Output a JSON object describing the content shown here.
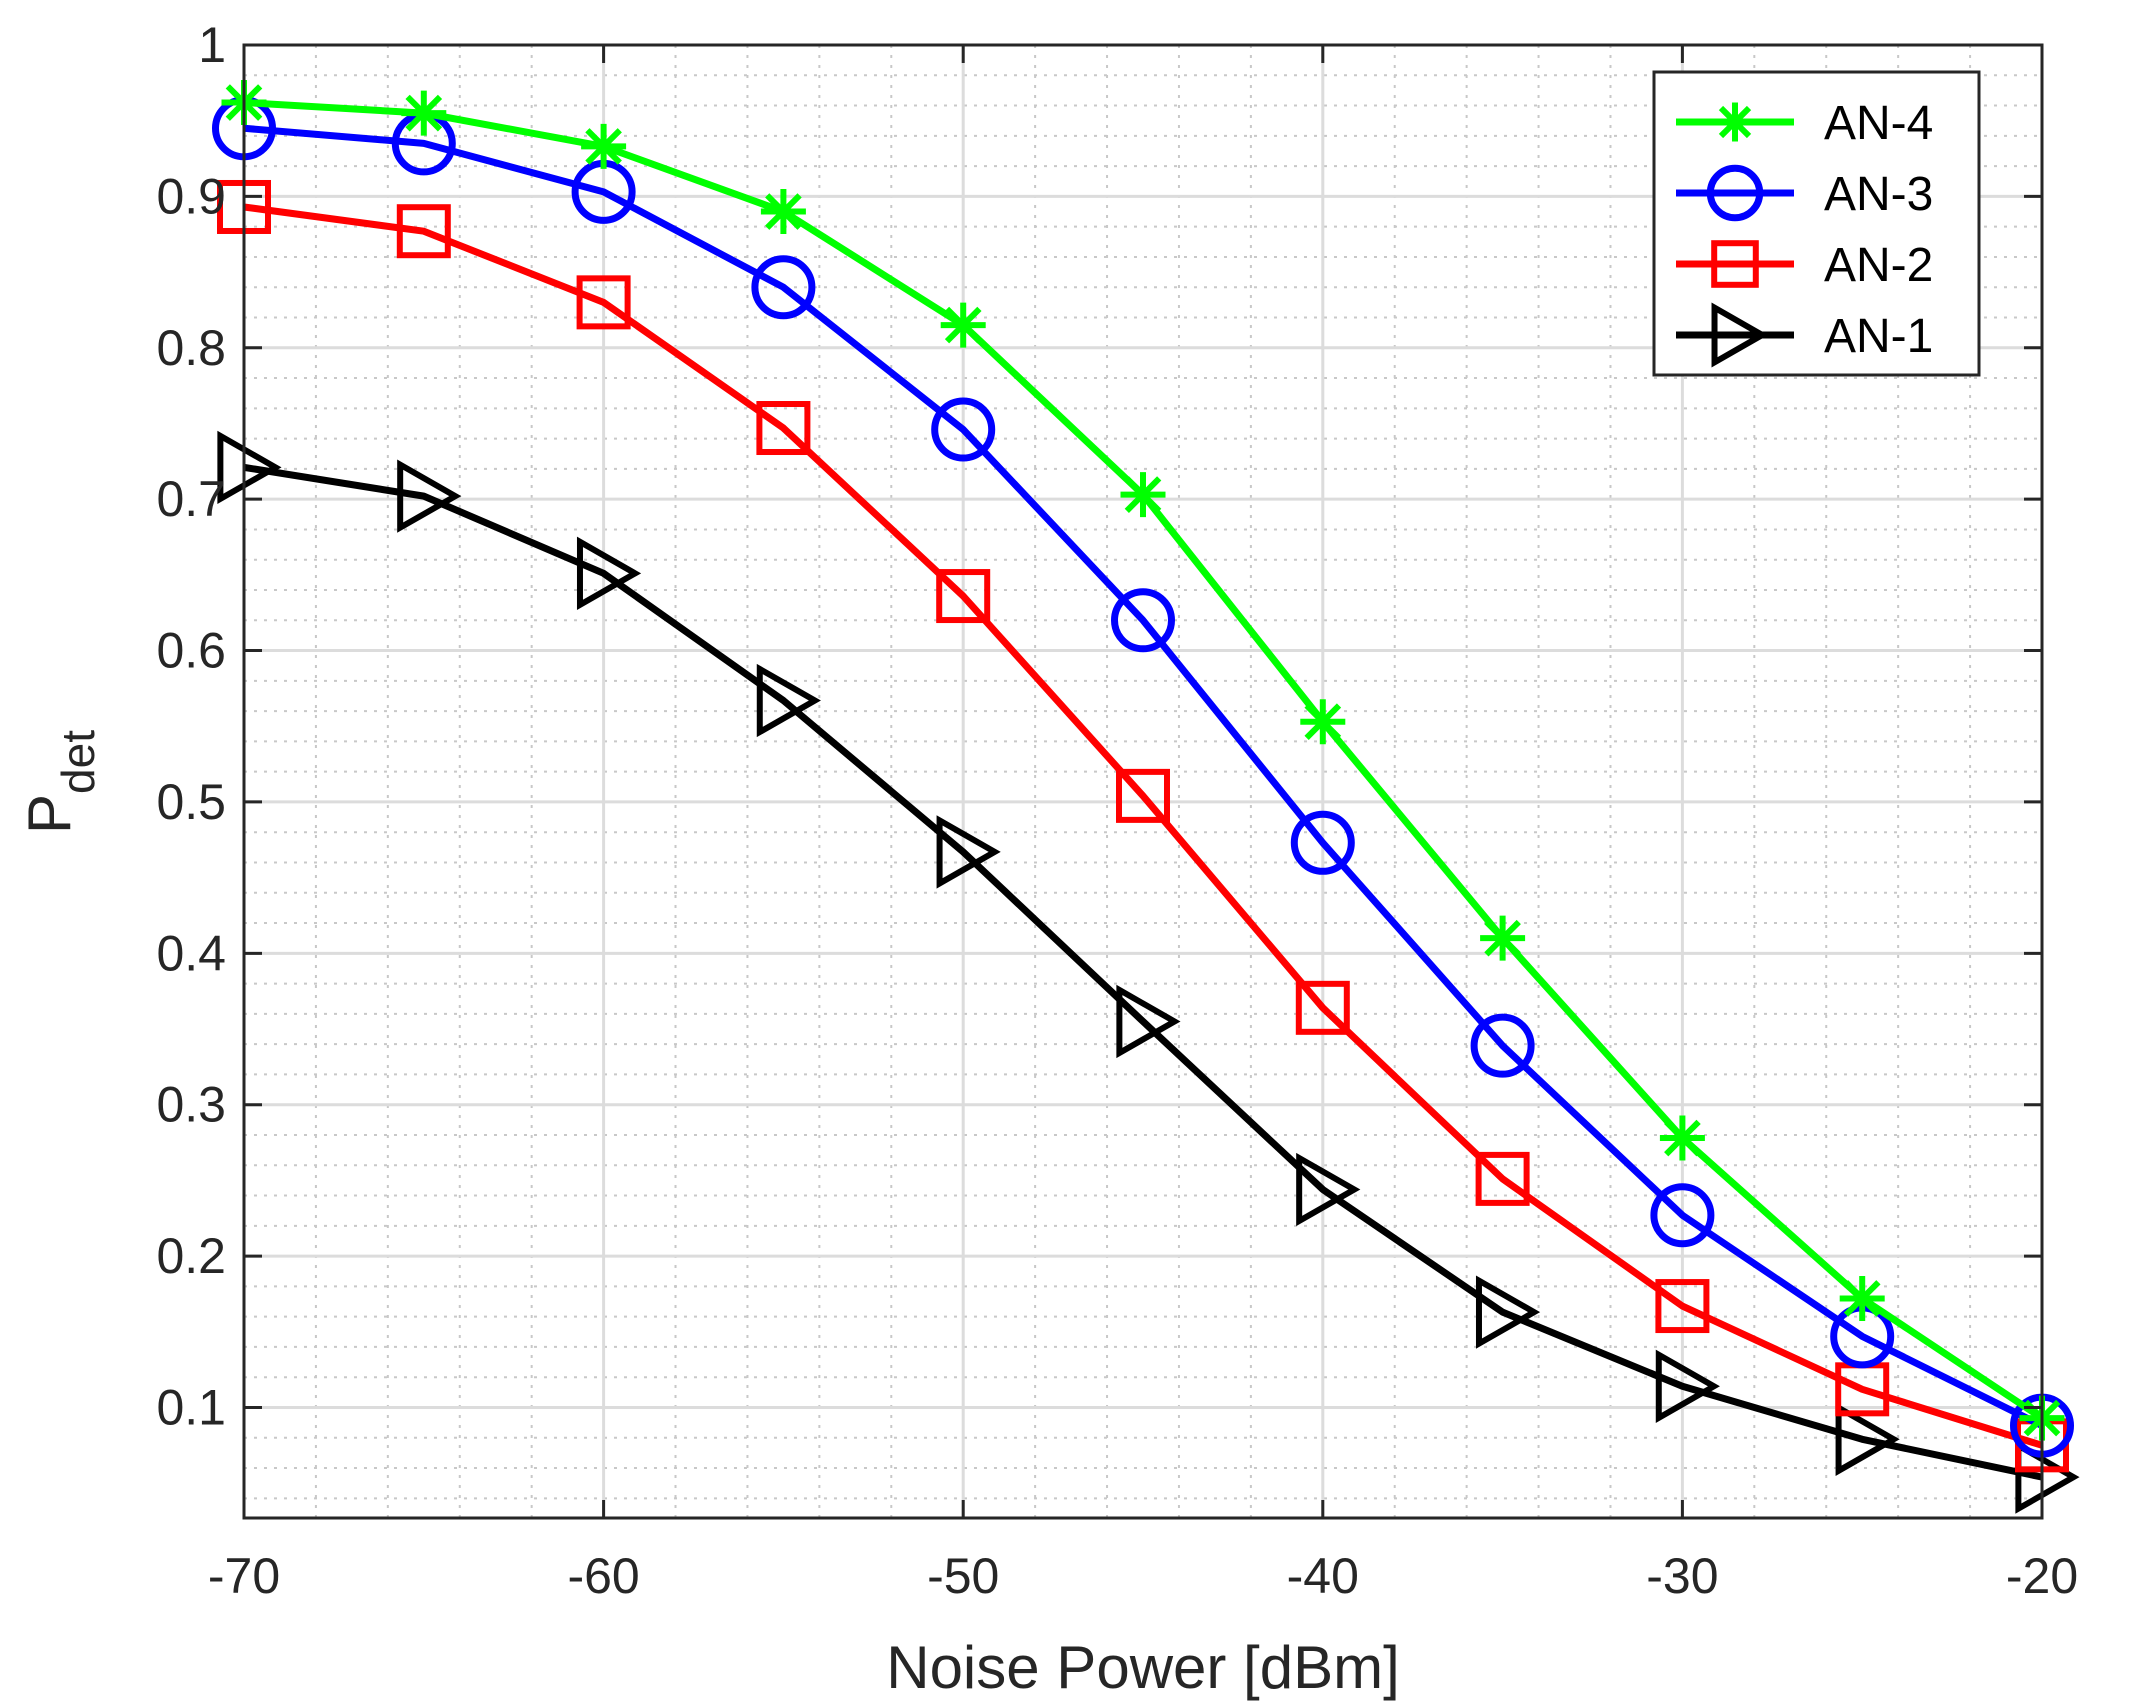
{
  "chart_data": {
    "type": "line",
    "title": "",
    "xlabel": "Noise Power [dBm]",
    "ylabel": {
      "main": "P",
      "sub": "det"
    },
    "x": [
      -70,
      -65,
      -60,
      -55,
      -50,
      -45,
      -40,
      -35,
      -30,
      -25,
      -20
    ],
    "xlim": [
      -70,
      -20
    ],
    "ylim": [
      0.027,
      1.0
    ],
    "xticks": [
      -70,
      -60,
      -50,
      -40,
      -30,
      -20
    ],
    "xtick_labels": [
      "-70",
      "-60",
      "-50",
      "-40",
      "-30",
      "-20"
    ],
    "yticks": [
      0.1,
      0.2,
      0.3,
      0.4,
      0.5,
      0.6,
      0.7,
      0.8,
      0.9,
      1.0
    ],
    "ytick_labels": [
      "0.1",
      "0.2",
      "0.3",
      "0.4",
      "0.5",
      "0.6",
      "0.7",
      "0.8",
      "0.9",
      "1"
    ],
    "grid": "major and minor",
    "legend_position": "top-right",
    "series": [
      {
        "name": "AN-4",
        "color": "#00ff00",
        "marker": "asterisk",
        "values": [
          0.962,
          0.955,
          0.933,
          0.89,
          0.815,
          0.703,
          0.553,
          0.41,
          0.278,
          0.172,
          0.093
        ]
      },
      {
        "name": "AN-3",
        "color": "#0000ff",
        "marker": "circle",
        "values": [
          0.945,
          0.935,
          0.903,
          0.84,
          0.746,
          0.62,
          0.473,
          0.339,
          0.227,
          0.147,
          0.088
        ]
      },
      {
        "name": "AN-2",
        "color": "#ff0000",
        "marker": "square",
        "values": [
          0.893,
          0.877,
          0.83,
          0.747,
          0.636,
          0.504,
          0.364,
          0.251,
          0.167,
          0.112,
          0.075
        ]
      },
      {
        "name": "AN-1",
        "color": "#000000",
        "marker": "triangle-right",
        "values": [
          0.721,
          0.702,
          0.651,
          0.567,
          0.467,
          0.355,
          0.244,
          0.163,
          0.114,
          0.079,
          0.054
        ]
      }
    ]
  }
}
